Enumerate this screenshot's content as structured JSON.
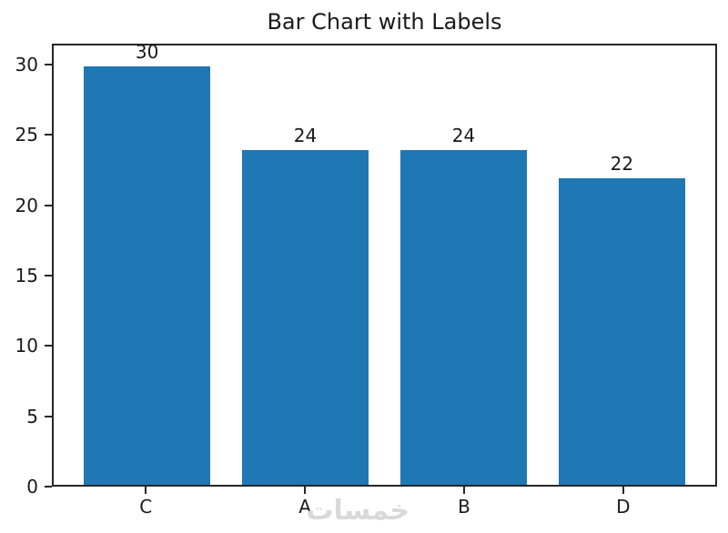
{
  "chart_data": {
    "type": "bar",
    "title": "Bar Chart with Labels",
    "categories": [
      "C",
      "A",
      "B",
      "D"
    ],
    "values": [
      30,
      24,
      24,
      22
    ],
    "bar_labels": [
      "30",
      "24",
      "24",
      "22"
    ],
    "xlabel": "",
    "ylabel": "",
    "yticks": [
      0,
      5,
      10,
      15,
      20,
      25,
      30
    ],
    "ylim": [
      0,
      31.5
    ],
    "grid": false,
    "legend": null,
    "bar_color": "#1f77b4"
  },
  "watermark": {
    "text": "خمسات"
  },
  "colors": {
    "bar": "#1f77b4",
    "spine": "#262626",
    "text": "#1a1a1a",
    "watermark": "#d9d9d9",
    "background": "#ffffff"
  }
}
